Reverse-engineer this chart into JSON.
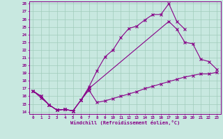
{
  "xlabel": "Windchill (Refroidissement éolien,°C)",
  "bg_color": "#c8e8e0",
  "line_color": "#880088",
  "grid_color": "#a0ccbb",
  "xlim_min": -0.5,
  "xlim_max": 23.5,
  "ylim_min": 13.7,
  "ylim_max": 28.3,
  "xticks": [
    0,
    1,
    2,
    3,
    4,
    5,
    6,
    7,
    8,
    9,
    10,
    11,
    12,
    13,
    14,
    15,
    16,
    17,
    18,
    19,
    20,
    21,
    22,
    23
  ],
  "yticks": [
    14,
    15,
    16,
    17,
    18,
    19,
    20,
    21,
    22,
    23,
    24,
    25,
    26,
    27,
    28
  ],
  "curve1_x": [
    0,
    1,
    2,
    3,
    4,
    5,
    6,
    7,
    8,
    9,
    10,
    11,
    12,
    13,
    14,
    15,
    16,
    17,
    18,
    19
  ],
  "curve1_y": [
    16.7,
    16.0,
    14.9,
    14.2,
    14.3,
    14.1,
    15.5,
    17.2,
    19.3,
    21.1,
    22.0,
    23.6,
    24.8,
    25.1,
    25.9,
    26.6,
    26.6,
    28.0,
    25.7,
    24.7
  ],
  "curve2_x": [
    0,
    1,
    2,
    3,
    4,
    5,
    6,
    7,
    17,
    18,
    19,
    20,
    21,
    22,
    23
  ],
  "curve2_y": [
    16.7,
    16.0,
    14.9,
    14.2,
    14.3,
    14.1,
    15.5,
    17.0,
    25.7,
    24.7,
    23.0,
    22.8,
    20.8,
    20.5,
    19.5
  ],
  "curve3_x": [
    0,
    1,
    2,
    3,
    4,
    5,
    6,
    7,
    8,
    9,
    10,
    11,
    12,
    13,
    14,
    15,
    16,
    17,
    18,
    19,
    20,
    21,
    22,
    23
  ],
  "curve3_y": [
    16.7,
    15.8,
    14.9,
    14.2,
    14.3,
    14.1,
    15.5,
    16.8,
    15.2,
    15.4,
    15.7,
    16.0,
    16.3,
    16.6,
    17.0,
    17.3,
    17.6,
    17.9,
    18.2,
    18.5,
    18.7,
    18.9,
    18.9,
    19.1
  ]
}
